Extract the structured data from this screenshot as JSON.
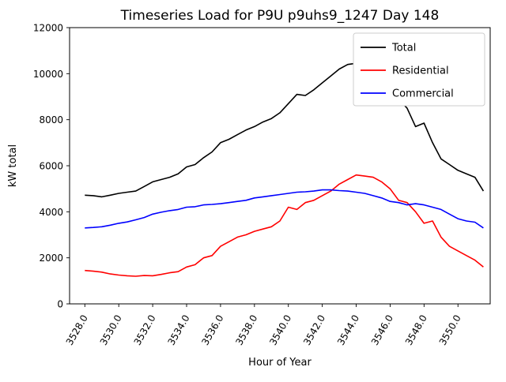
{
  "chart_data": {
    "type": "line",
    "title": "Timeseries Load for P9U p9uhs9_1247  Day 148",
    "xlabel": "Hour of Year",
    "ylabel": "kW total",
    "xlim": [
      3527.1,
      3551.9
    ],
    "ylim": [
      0,
      12000
    ],
    "grid": false,
    "legend_position": "upper right",
    "x_start": 3528.0,
    "x_step": 0.5,
    "xtick_values": [
      3528,
      3530,
      3532,
      3534,
      3536,
      3538,
      3540,
      3542,
      3544,
      3546,
      3548,
      3550
    ],
    "xtick_labels": [
      "3528.0",
      "3530.0",
      "3532.0",
      "3534.0",
      "3536.0",
      "3538.0",
      "3540.0",
      "3542.0",
      "3544.0",
      "3546.0",
      "3548.0",
      "3550.0"
    ],
    "ytick_values": [
      0,
      2000,
      4000,
      6000,
      8000,
      10000,
      12000
    ],
    "ytick_labels": [
      "0",
      "2000",
      "4000",
      "6000",
      "8000",
      "10000",
      "12000"
    ],
    "series": [
      {
        "name": "Total",
        "color": "#000000",
        "values": [
          4720,
          4700,
          4650,
          4720,
          4800,
          4850,
          4900,
          5100,
          5300,
          5400,
          5500,
          5650,
          5950,
          6050,
          6350,
          6600,
          7000,
          7150,
          7350,
          7550,
          7700,
          7900,
          8050,
          8300,
          8700,
          9100,
          9050,
          9300,
          9600,
          9900,
          10200,
          10400,
          10450,
          10300,
          9900,
          9500,
          9050,
          8900,
          8500,
          7700,
          7850,
          7000,
          6300,
          6050,
          5800,
          5650,
          5500,
          4900
        ]
      },
      {
        "name": "Residential",
        "color": "#ff0000",
        "values": [
          1450,
          1420,
          1380,
          1300,
          1250,
          1220,
          1200,
          1230,
          1220,
          1280,
          1350,
          1400,
          1600,
          1700,
          2000,
          2100,
          2500,
          2700,
          2900,
          3000,
          3150,
          3250,
          3350,
          3600,
          4200,
          4100,
          4400,
          4500,
          4700,
          4900,
          5200,
          5400,
          5600,
          5550,
          5500,
          5300,
          5000,
          4500,
          4400,
          4000,
          3500,
          3600,
          2900,
          2500,
          2300,
          2100,
          1900,
          1600
        ]
      },
      {
        "name": "Commercial",
        "color": "#0000ff",
        "values": [
          3300,
          3320,
          3350,
          3420,
          3500,
          3560,
          3650,
          3750,
          3900,
          3980,
          4050,
          4100,
          4200,
          4220,
          4300,
          4320,
          4350,
          4400,
          4450,
          4500,
          4600,
          4650,
          4700,
          4750,
          4800,
          4850,
          4870,
          4900,
          4950,
          4950,
          4920,
          4900,
          4850,
          4800,
          4700,
          4600,
          4450,
          4400,
          4300,
          4350,
          4300,
          4200,
          4100,
          3900,
          3700,
          3600,
          3550,
          3300
        ]
      }
    ]
  }
}
